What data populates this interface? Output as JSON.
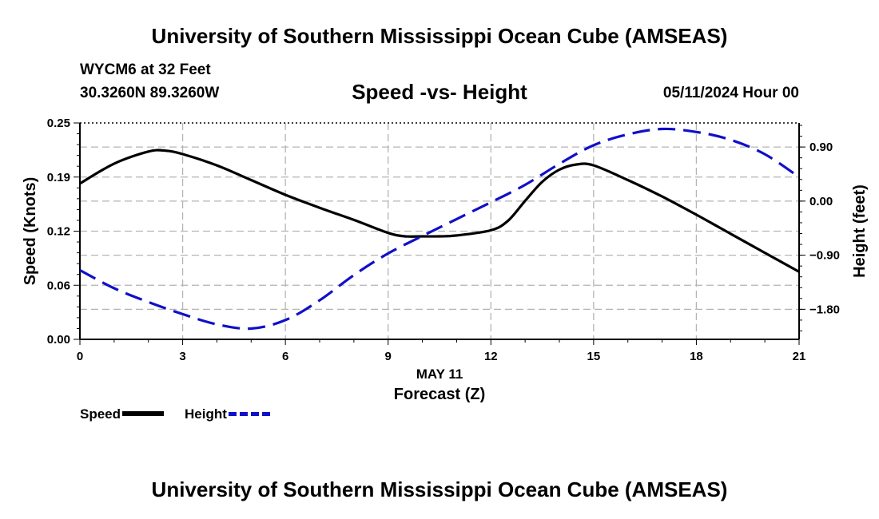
{
  "header": {
    "title": "University of Southern Mississippi Ocean Cube (AMSEAS)",
    "station": "WYCM6 at 32 Feet",
    "coords": "30.3260N  89.3260W",
    "subtitle": "Speed -vs- Height",
    "date": "05/11/2024 Hour 00"
  },
  "footer": {
    "title": "University of Southern Mississippi Ocean Cube (AMSEAS)"
  },
  "legend": {
    "speed_label": "Speed",
    "height_label": "Height"
  },
  "colors": {
    "speed": "#000000",
    "height": "#1010c8",
    "grid": "#b4b4b4"
  },
  "chart_data": {
    "type": "line",
    "title": "Speed -vs- Height",
    "xlabel": "Forecast (Z)",
    "xlabel_date": "MAY 11",
    "ylabel": "Speed (Knots)",
    "y2label": "Height (feet)",
    "xlim": [
      0,
      21
    ],
    "ylim": [
      0,
      0.25
    ],
    "y2lim": [
      -2.3,
      1.3
    ],
    "x_ticks": [
      0,
      3,
      6,
      9,
      12,
      15,
      18,
      21
    ],
    "x_tick_labels": [
      "0",
      "3",
      "6",
      "9",
      "12",
      "15",
      "18",
      "21"
    ],
    "y_ticks": [
      0,
      0.0625,
      0.125,
      0.1875,
      0.25
    ],
    "y_tick_labels": [
      "0.00",
      "0.06",
      "0.12",
      "0.19",
      "0.25"
    ],
    "y2_ticks": [
      -1.8,
      -0.9,
      0,
      0.9
    ],
    "y2_tick_labels": [
      "−1.80",
      "−0.90",
      "0.00",
      "0.90"
    ],
    "grid": true,
    "series": [
      {
        "name": "Speed",
        "axis": "left",
        "style": "solid",
        "x": [
          0,
          1,
          2,
          2.5,
          3,
          4,
          5,
          6,
          7,
          8,
          9,
          9.5,
          10,
          10.5,
          11,
          12,
          12.5,
          13,
          13.5,
          14,
          14.5,
          15,
          16,
          17,
          18,
          19,
          20,
          21
        ],
        "values": [
          0.18,
          0.203,
          0.217,
          0.218,
          0.214,
          0.201,
          0.184,
          0.167,
          0.152,
          0.138,
          0.123,
          0.119,
          0.119,
          0.119,
          0.12,
          0.126,
          0.137,
          0.16,
          0.182,
          0.196,
          0.202,
          0.201,
          0.184,
          0.165,
          0.144,
          0.122,
          0.1,
          0.078
        ]
      },
      {
        "name": "Height",
        "axis": "right",
        "style": "dashed",
        "x": [
          0,
          1,
          2,
          3,
          4,
          5,
          6,
          7,
          8,
          9,
          10,
          11,
          12,
          13,
          14,
          15,
          16,
          17,
          18,
          19,
          20,
          21
        ],
        "values": [
          -1.15,
          -1.45,
          -1.68,
          -1.88,
          -2.05,
          -2.12,
          -1.98,
          -1.65,
          -1.23,
          -0.87,
          -0.58,
          -0.3,
          -0.02,
          0.27,
          0.62,
          0.93,
          1.11,
          1.2,
          1.15,
          1.02,
          0.78,
          0.4
        ]
      }
    ]
  }
}
